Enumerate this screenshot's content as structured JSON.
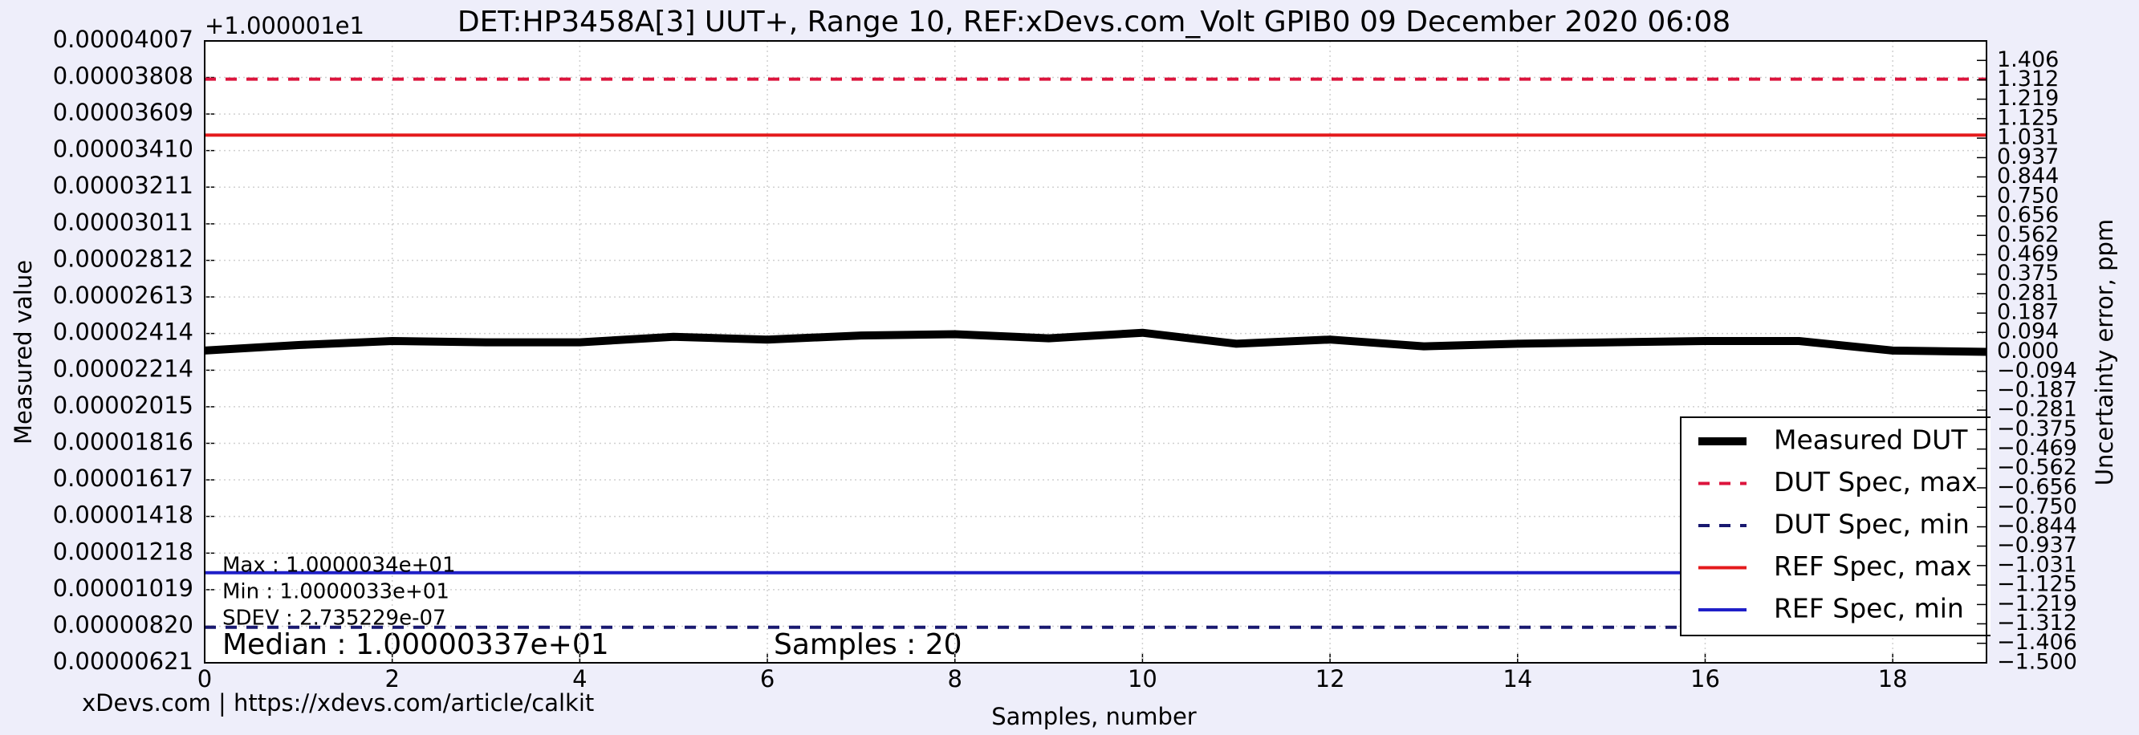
{
  "chart_data": {
    "type": "line",
    "title": "DET:HP3458A[3] UUT+, Range   10, REF:xDevs.com_Volt GPIB0 09 December 2020 06:08",
    "offset_text": "+1.000001e1",
    "ylabel": "Measured value",
    "y2label": "Uncertainty error, ppm",
    "xlabel": "Samples, number",
    "footer": "xDevs.com | https://xdevs.com/article/calkit",
    "annotations": [
      "Max : 1.0000034e+01",
      "Min : 1.0000033e+01",
      "SDEV : 2.735229e-07"
    ],
    "median_text": "Median : 1.00000337e+01",
    "samples_text": "Samples : 20",
    "x": [
      0,
      1,
      2,
      3,
      4,
      5,
      6,
      7,
      8,
      9,
      10,
      11,
      12,
      13,
      14,
      15,
      16,
      17,
      18,
      19
    ],
    "xlim": [
      0,
      19
    ],
    "xticks": [
      0,
      2,
      4,
      6,
      8,
      10,
      12,
      14,
      16,
      18
    ],
    "ylim": [
      6.21e-06,
      4.007e-05
    ],
    "yticks": [
      {
        "value": 6.21e-06,
        "label": "0.00000621"
      },
      {
        "value": 8.2e-06,
        "label": "0.00000820"
      },
      {
        "value": 1.019e-05,
        "label": "0.00001019"
      },
      {
        "value": 1.218e-05,
        "label": "0.00001218"
      },
      {
        "value": 1.418e-05,
        "label": "0.00001418"
      },
      {
        "value": 1.617e-05,
        "label": "0.00001617"
      },
      {
        "value": 1.816e-05,
        "label": "0.00001816"
      },
      {
        "value": 2.015e-05,
        "label": "0.00002015"
      },
      {
        "value": 2.214e-05,
        "label": "0.00002214"
      },
      {
        "value": 2.414e-05,
        "label": "0.00002414"
      },
      {
        "value": 2.613e-05,
        "label": "0.00002613"
      },
      {
        "value": 2.812e-05,
        "label": "0.00002812"
      },
      {
        "value": 3.011e-05,
        "label": "0.00003011"
      },
      {
        "value": 3.211e-05,
        "label": "0.00003211"
      },
      {
        "value": 3.41e-05,
        "label": "0.00003410"
      },
      {
        "value": 3.609e-05,
        "label": "0.00003609"
      },
      {
        "value": 3.808e-05,
        "label": "0.00003808"
      },
      {
        "value": 4.007e-05,
        "label": "0.00004007"
      }
    ],
    "y2lim": [
      -1.5,
      1.5
    ],
    "y2ticks": [
      {
        "value": -1.5,
        "label": "−1.500"
      },
      {
        "value": -1.406,
        "label": "−1.406"
      },
      {
        "value": -1.312,
        "label": "−1.312"
      },
      {
        "value": -1.219,
        "label": "−1.219"
      },
      {
        "value": -1.125,
        "label": "−1.125"
      },
      {
        "value": -1.031,
        "label": "−1.031"
      },
      {
        "value": -0.937,
        "label": "−0.937"
      },
      {
        "value": -0.844,
        "label": "−0.844"
      },
      {
        "value": -0.75,
        "label": "−0.750"
      },
      {
        "value": -0.656,
        "label": "−0.656"
      },
      {
        "value": -0.562,
        "label": "−0.562"
      },
      {
        "value": -0.469,
        "label": "−0.469"
      },
      {
        "value": -0.375,
        "label": "−0.375"
      },
      {
        "value": -0.281,
        "label": "−0.281"
      },
      {
        "value": -0.187,
        "label": "−0.187"
      },
      {
        "value": -0.094,
        "label": "−0.094"
      },
      {
        "value": 0,
        "label": "0.000"
      },
      {
        "value": 0.094,
        "label": "0.094"
      },
      {
        "value": 0.187,
        "label": "0.187"
      },
      {
        "value": 0.281,
        "label": "0.281"
      },
      {
        "value": 0.375,
        "label": "0.375"
      },
      {
        "value": 0.469,
        "label": "0.469"
      },
      {
        "value": 0.562,
        "label": "0.562"
      },
      {
        "value": 0.656,
        "label": "0.656"
      },
      {
        "value": 0.75,
        "label": "0.750"
      },
      {
        "value": 0.844,
        "label": "0.844"
      },
      {
        "value": 0.937,
        "label": "0.937"
      },
      {
        "value": 1.031,
        "label": "1.031"
      },
      {
        "value": 1.125,
        "label": "1.125"
      },
      {
        "value": 1.219,
        "label": "1.219"
      },
      {
        "value": 1.312,
        "label": "1.312"
      },
      {
        "value": 1.406,
        "label": "1.406"
      }
    ],
    "grid": true,
    "legend": "lower right",
    "series": [
      {
        "name": "Measured DUT",
        "color": "#000000",
        "linestyle": "solid",
        "values": [
          2.321e-05,
          2.351e-05,
          2.373e-05,
          2.366e-05,
          2.366e-05,
          2.396e-05,
          2.381e-05,
          2.403e-05,
          2.41e-05,
          2.388e-05,
          2.418e-05,
          2.358e-05,
          2.381e-05,
          2.344e-05,
          2.358e-05,
          2.366e-05,
          2.373e-05,
          2.373e-05,
          2.321e-05,
          2.314e-05
        ]
      },
      {
        "name": "DUT Spec, max",
        "color": "#dc143c",
        "linestyle": "dashed",
        "values": [
          3.799e-05,
          3.799e-05,
          3.799e-05,
          3.799e-05,
          3.799e-05,
          3.799e-05,
          3.799e-05,
          3.799e-05,
          3.799e-05,
          3.799e-05,
          3.799e-05,
          3.799e-05,
          3.799e-05,
          3.799e-05,
          3.799e-05,
          3.799e-05,
          3.799e-05,
          3.799e-05,
          3.799e-05,
          3.799e-05
        ]
      },
      {
        "name": "DUT Spec, min",
        "color": "#191970",
        "linestyle": "dashed",
        "values": [
          8.14e-06,
          8.14e-06,
          8.14e-06,
          8.14e-06,
          8.14e-06,
          8.14e-06,
          8.14e-06,
          8.14e-06,
          8.14e-06,
          8.14e-06,
          8.14e-06,
          8.14e-06,
          8.14e-06,
          8.14e-06,
          8.14e-06,
          8.14e-06,
          8.14e-06,
          8.14e-06,
          8.14e-06,
          8.14e-06
        ]
      },
      {
        "name": "REF Spec, max",
        "color": "#e41a1c",
        "linestyle": "solid",
        "values": [
          3.494e-05,
          3.494e-05,
          3.494e-05,
          3.494e-05,
          3.494e-05,
          3.494e-05,
          3.494e-05,
          3.494e-05,
          3.494e-05,
          3.494e-05,
          3.494e-05,
          3.494e-05,
          3.494e-05,
          3.494e-05,
          3.494e-05,
          3.494e-05,
          3.494e-05,
          3.494e-05,
          3.494e-05,
          3.494e-05
        ]
      },
      {
        "name": "REF Spec, min",
        "color": "#1f1fc8",
        "linestyle": "solid",
        "values": [
          1.111e-05,
          1.111e-05,
          1.111e-05,
          1.111e-05,
          1.111e-05,
          1.111e-05,
          1.111e-05,
          1.111e-05,
          1.111e-05,
          1.111e-05,
          1.111e-05,
          1.111e-05,
          1.111e-05,
          1.111e-05,
          1.111e-05,
          1.111e-05,
          1.111e-05,
          1.111e-05,
          1.111e-05,
          1.111e-05
        ]
      }
    ]
  }
}
